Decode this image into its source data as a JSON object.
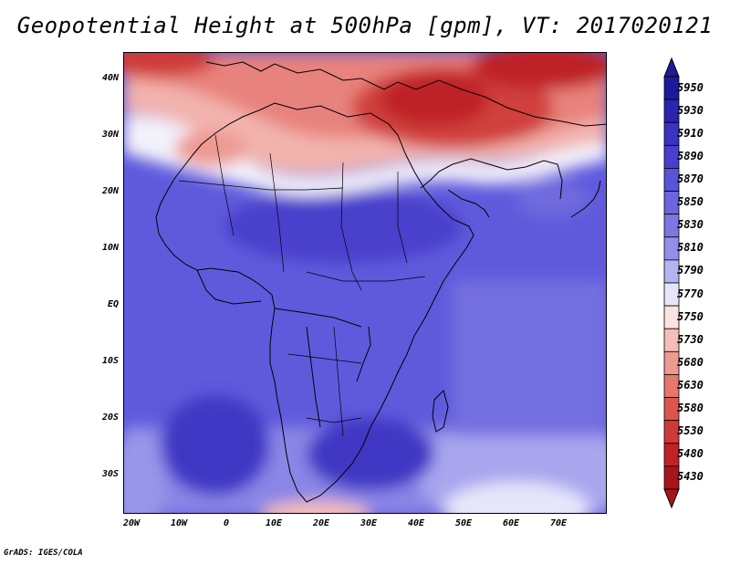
{
  "title": "Geopotential Height at 500hPa [gpm], VT: 2017020121",
  "credit": "GrADS: IGES/COLA",
  "map": {
    "region": "Africa",
    "lon_range": [
      -25,
      80
    ],
    "lat_range": [
      -37,
      45
    ],
    "lat_labels": [
      "40N",
      "30N",
      "20N",
      "10N",
      "EQ",
      "10S",
      "20S",
      "30S"
    ],
    "lon_labels": [
      "20W",
      "10W",
      "0",
      "10E",
      "20E",
      "30E",
      "40E",
      "50E",
      "60E",
      "70E"
    ]
  },
  "colorbar": {
    "levels": [
      "5950",
      "5930",
      "5910",
      "5890",
      "5870",
      "5850",
      "5830",
      "5810",
      "5790",
      "5770",
      "5750",
      "5730",
      "5680",
      "5630",
      "5580",
      "5530",
      "5480",
      "5430"
    ],
    "colors": [
      "#1f1a9a",
      "#2b24b0",
      "#3a32c2",
      "#4840cc",
      "#5a54d8",
      "#6b66dc",
      "#7c78e2",
      "#938fe8",
      "#b6b4f0",
      "#e6e6fa",
      "#fbe3e1",
      "#f5bdb8",
      "#ee9a93",
      "#e6776f",
      "#dc5650",
      "#cf3a37",
      "#bf2326",
      "#a8141b"
    ]
  }
}
